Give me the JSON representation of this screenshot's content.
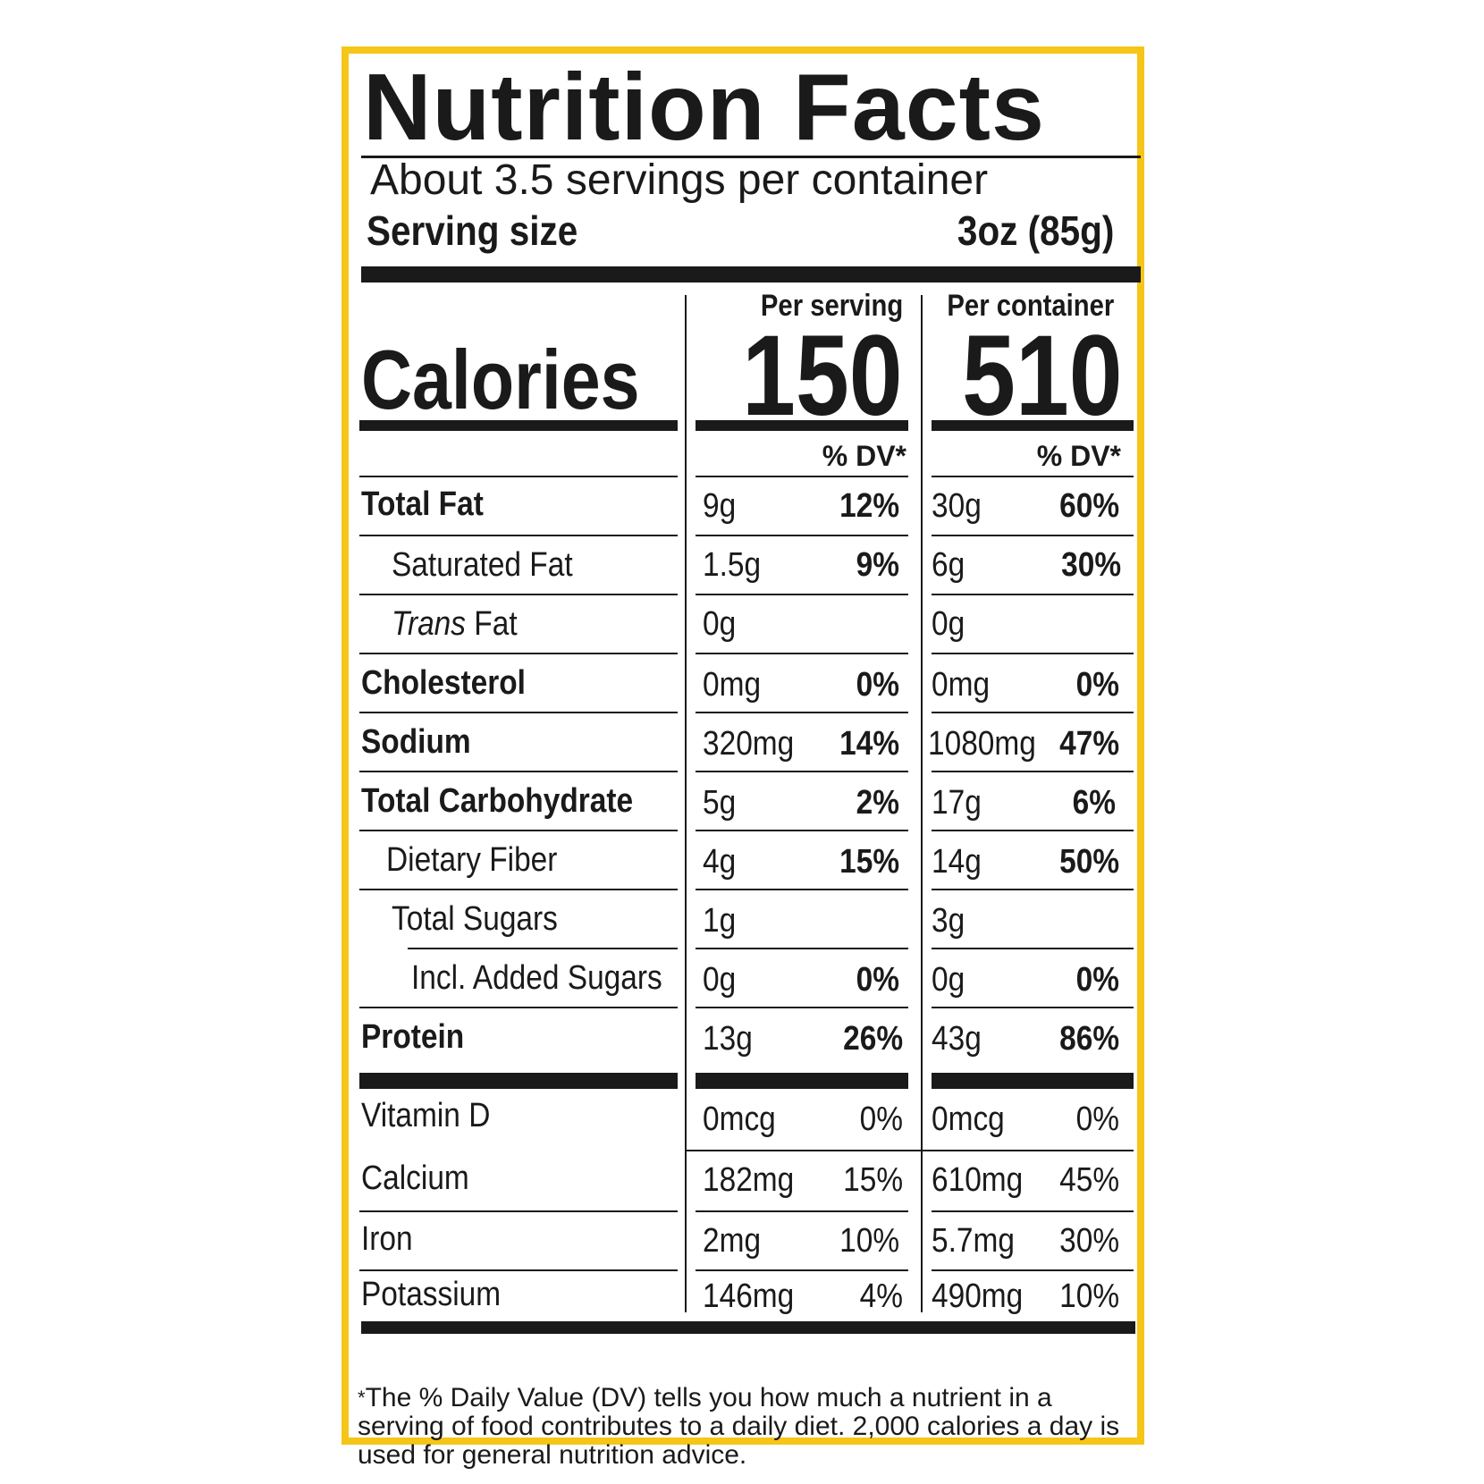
{
  "title": "Nutrition Facts",
  "servings_per_container": "About 3.5 servings per container",
  "serving_size": {
    "label": "Serving size",
    "value": "3oz (85g)"
  },
  "columns": {
    "per_serving": "Per serving",
    "per_container": "Per container"
  },
  "calories": {
    "label": "Calories",
    "per_serving": "150",
    "per_container": "510"
  },
  "dv_header": "% DV*",
  "nutrients": [
    {
      "name": "Total Fat",
      "serving_amount": "9g",
      "serving_dv": "12%",
      "container_amount": "30g",
      "container_dv": "60%"
    },
    {
      "name": "Saturated Fat",
      "serving_amount": "1.5g",
      "serving_dv": "9%",
      "container_amount": "6g",
      "container_dv": "30%"
    },
    {
      "name_italic": "Trans",
      "name": " Fat",
      "serving_amount": "0g",
      "serving_dv": "",
      "container_amount": "0g",
      "container_dv": ""
    },
    {
      "name": "Cholesterol",
      "serving_amount": "0mg",
      "serving_dv": "0%",
      "container_amount": "0mg",
      "container_dv": "0%"
    },
    {
      "name": "Sodium",
      "serving_amount": "320mg",
      "serving_dv": "14%",
      "container_amount": "1080mg",
      "container_dv": "47%"
    },
    {
      "name": "Total Carbohydrate",
      "serving_amount": "5g",
      "serving_dv": "2%",
      "container_amount": "17g",
      "container_dv": "6%"
    },
    {
      "name": "Dietary Fiber",
      "serving_amount": "4g",
      "serving_dv": "15%",
      "container_amount": "14g",
      "container_dv": "50%"
    },
    {
      "name": "Total Sugars",
      "serving_amount": "1g",
      "serving_dv": "",
      "container_amount": "3g",
      "container_dv": ""
    },
    {
      "name": "Incl. Added Sugars",
      "serving_amount": "0g",
      "serving_dv": "0%",
      "container_amount": "0g",
      "container_dv": "0%"
    },
    {
      "name": "Protein",
      "serving_amount": "13g",
      "serving_dv": "26%",
      "container_amount": "43g",
      "container_dv": "86%"
    }
  ],
  "vitamins": [
    {
      "name": "Vitamin D",
      "serving_amount": "0mcg",
      "serving_dv": "0%",
      "container_amount": "0mcg",
      "container_dv": "0%"
    },
    {
      "name": "Calcium",
      "serving_amount": "182mg",
      "serving_dv": "15%",
      "container_amount": "610mg",
      "container_dv": "45%"
    },
    {
      "name": "Iron",
      "serving_amount": "2mg",
      "serving_dv": "10%",
      "container_amount": "5.7mg",
      "container_dv": "30%"
    },
    {
      "name": "Potassium",
      "serving_amount": "146mg",
      "serving_dv": "4%",
      "container_amount": "490mg",
      "container_dv": "10%"
    }
  ],
  "footnote": {
    "star": "*",
    "text": "The % Daily Value (DV) tells you how much a nutrient in a serving of food contributes to a daily diet. 2,000 calories a day is used for general nutrition advice."
  },
  "colors": {
    "border": "#f5c518",
    "ink": "#1a1a1a"
  }
}
